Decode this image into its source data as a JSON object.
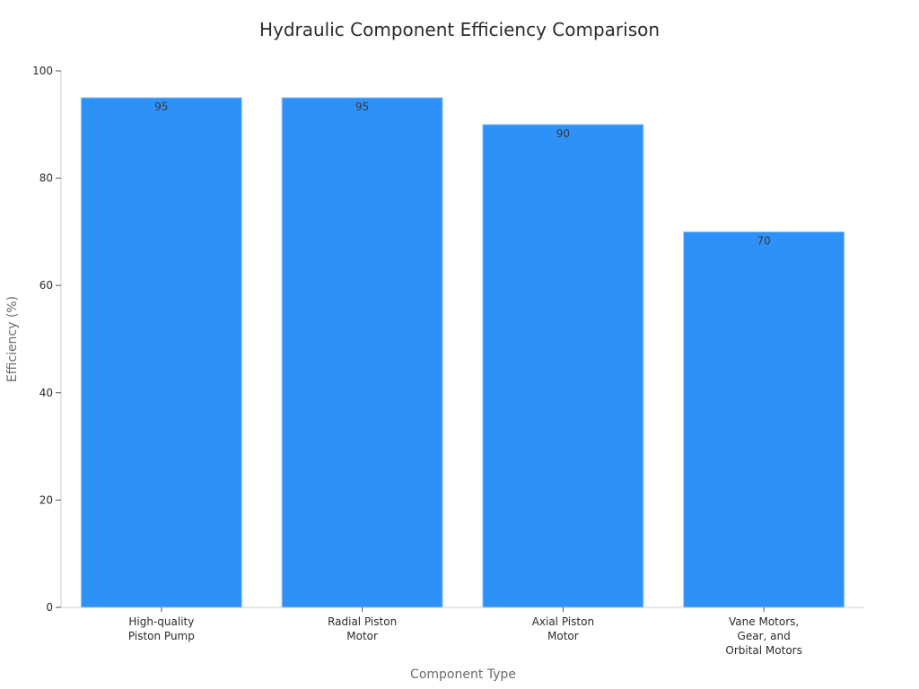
{
  "chart_data": {
    "type": "bar",
    "title": "Hydraulic Component Efficiency Comparison",
    "xlabel": "Component Type",
    "ylabel": "Efficiency (%)",
    "categories": [
      "High-quality Piston Pump",
      "Radial Piston Motor",
      "Axial Piston Motor",
      "Vane Motors, Gear, and Orbital Motors"
    ],
    "category_label_lines": [
      [
        "High-quality",
        "Piston Pump"
      ],
      [
        "Radial Piston",
        "Motor"
      ],
      [
        "Axial Piston",
        "Motor"
      ],
      [
        "Vane Motors,",
        "Gear, and",
        "Orbital Motors"
      ]
    ],
    "values": [
      95,
      95,
      90,
      70
    ],
    "data_labels": [
      "95",
      "95",
      "90",
      "70"
    ],
    "ylim": [
      0,
      100
    ],
    "yticks": [
      0,
      20,
      40,
      60,
      80,
      100
    ],
    "grid": false,
    "legend": "none",
    "bar_color": "#2e91f8",
    "bar_edge_color": "#9cc9f5"
  }
}
